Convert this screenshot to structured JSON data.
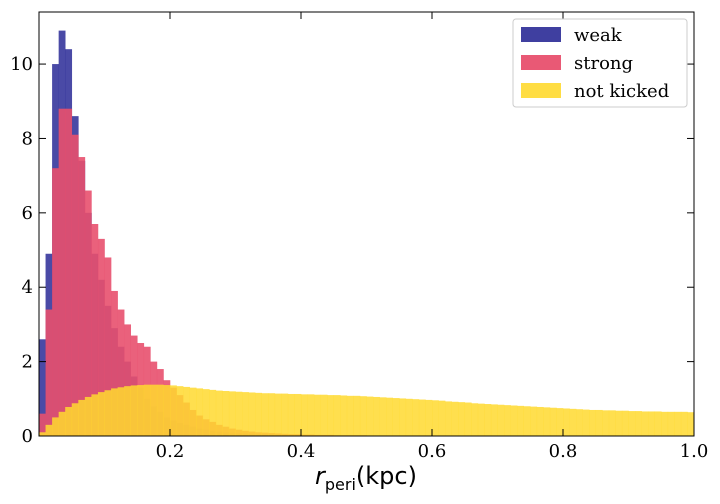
{
  "chart_data": {
    "type": "bar",
    "subtype": "overlapping-histogram",
    "title": "",
    "xlabel": {
      "main": "r",
      "sub": "peri",
      "unit": "(kpc)"
    },
    "ylabel": "",
    "xlim": [
      0.0,
      1.0
    ],
    "ylim": [
      0,
      11.4
    ],
    "xticks": [
      0.2,
      0.4,
      0.6,
      0.8,
      1.0
    ],
    "xtick_labels": [
      "0.2",
      "0.4",
      "0.6",
      "0.8",
      "1.0"
    ],
    "yticks": [
      0,
      2,
      4,
      6,
      8,
      10
    ],
    "ytick_labels": [
      "0",
      "2",
      "4",
      "6",
      "8",
      "10"
    ],
    "tick_direction": "in",
    "grid": false,
    "legend_position": "top-right",
    "bin_width": 0.01,
    "bin_start": 0.0,
    "series": [
      {
        "name": "weak",
        "color": "#2a2a96",
        "opacity": 0.85,
        "values": [
          2.6,
          4.9,
          10.0,
          10.9,
          10.4,
          8.6,
          7.4,
          6.0,
          4.9,
          4.2,
          3.5,
          2.9,
          2.4,
          2.0,
          1.6,
          1.3,
          1.0,
          0.8,
          0.65,
          0.5,
          0.42,
          0.35,
          0.3,
          0.25,
          0.2,
          0.17,
          0.14,
          0.12,
          0.1,
          0.09,
          0.08,
          0.07,
          0.06,
          0.05,
          0.05,
          0.04,
          0.04,
          0.03,
          0.03,
          0.03,
          0.02,
          0.02,
          0.02,
          0.02,
          0.02,
          0.01,
          0.01,
          0.01,
          0.01,
          0.01,
          0.01,
          0.01,
          0.01,
          0.01,
          0.01,
          0.0,
          0.0,
          0.0,
          0.0,
          0.0,
          0.0,
          0.0,
          0.0,
          0.0,
          0.0,
          0.0,
          0.0,
          0.0,
          0.0,
          0.0,
          0.0,
          0.0,
          0.0,
          0.0,
          0.0,
          0.0,
          0.0,
          0.0,
          0.0,
          0.0,
          0.0,
          0.0,
          0.0,
          0.0,
          0.0,
          0.0,
          0.0,
          0.0,
          0.0,
          0.0,
          0.0,
          0.0,
          0.0,
          0.0,
          0.0,
          0.0,
          0.0,
          0.0,
          0.0,
          0.0
        ]
      },
      {
        "name": "strong",
        "color": "#e8506e",
        "opacity": 0.9,
        "values": [
          0.6,
          3.4,
          7.2,
          8.8,
          8.8,
          8.1,
          7.5,
          6.6,
          5.7,
          5.3,
          4.8,
          3.9,
          3.4,
          3.0,
          2.7,
          2.5,
          2.4,
          2.0,
          1.8,
          1.5,
          1.3,
          1.1,
          0.9,
          0.7,
          0.55,
          0.45,
          0.38,
          0.3,
          0.25,
          0.2,
          0.17,
          0.14,
          0.12,
          0.1,
          0.09,
          0.08,
          0.07,
          0.06,
          0.05,
          0.05,
          0.04,
          0.04,
          0.03,
          0.03,
          0.03,
          0.02,
          0.02,
          0.02,
          0.02,
          0.02,
          0.01,
          0.01,
          0.01,
          0.01,
          0.01,
          0.01,
          0.01,
          0.01,
          0.01,
          0.01,
          0.0,
          0.0,
          0.0,
          0.0,
          0.0,
          0.0,
          0.0,
          0.0,
          0.0,
          0.0,
          0.0,
          0.0,
          0.0,
          0.0,
          0.0,
          0.0,
          0.0,
          0.0,
          0.0,
          0.0,
          0.0,
          0.0,
          0.0,
          0.0,
          0.0,
          0.0,
          0.0,
          0.0,
          0.0,
          0.0,
          0.0,
          0.0,
          0.0,
          0.0,
          0.0,
          0.0,
          0.0,
          0.0,
          0.0,
          0.0
        ]
      },
      {
        "name": "not kicked",
        "color": "#ffd92f",
        "opacity": 0.85,
        "values": [
          0.1,
          0.3,
          0.5,
          0.65,
          0.78,
          0.88,
          0.97,
          1.05,
          1.12,
          1.18,
          1.23,
          1.28,
          1.31,
          1.34,
          1.36,
          1.37,
          1.38,
          1.38,
          1.38,
          1.37,
          1.36,
          1.34,
          1.32,
          1.3,
          1.28,
          1.26,
          1.24,
          1.22,
          1.21,
          1.2,
          1.19,
          1.18,
          1.17,
          1.16,
          1.15,
          1.15,
          1.14,
          1.14,
          1.13,
          1.13,
          1.12,
          1.12,
          1.11,
          1.11,
          1.1,
          1.1,
          1.09,
          1.08,
          1.08,
          1.07,
          1.06,
          1.05,
          1.04,
          1.03,
          1.02,
          1.01,
          1.0,
          0.99,
          0.98,
          0.97,
          0.96,
          0.95,
          0.93,
          0.92,
          0.91,
          0.9,
          0.88,
          0.87,
          0.86,
          0.85,
          0.84,
          0.83,
          0.82,
          0.81,
          0.8,
          0.79,
          0.78,
          0.77,
          0.76,
          0.75,
          0.74,
          0.73,
          0.72,
          0.71,
          0.7,
          0.7,
          0.69,
          0.69,
          0.68,
          0.68,
          0.67,
          0.67,
          0.66,
          0.66,
          0.66,
          0.65,
          0.65,
          0.65,
          0.65,
          0.64
        ]
      }
    ],
    "overlap_colors": {
      "weak_strong": "#b02359",
      "yellow_red": "#e8a018",
      "yellow_blue": "#d89a1a"
    }
  }
}
